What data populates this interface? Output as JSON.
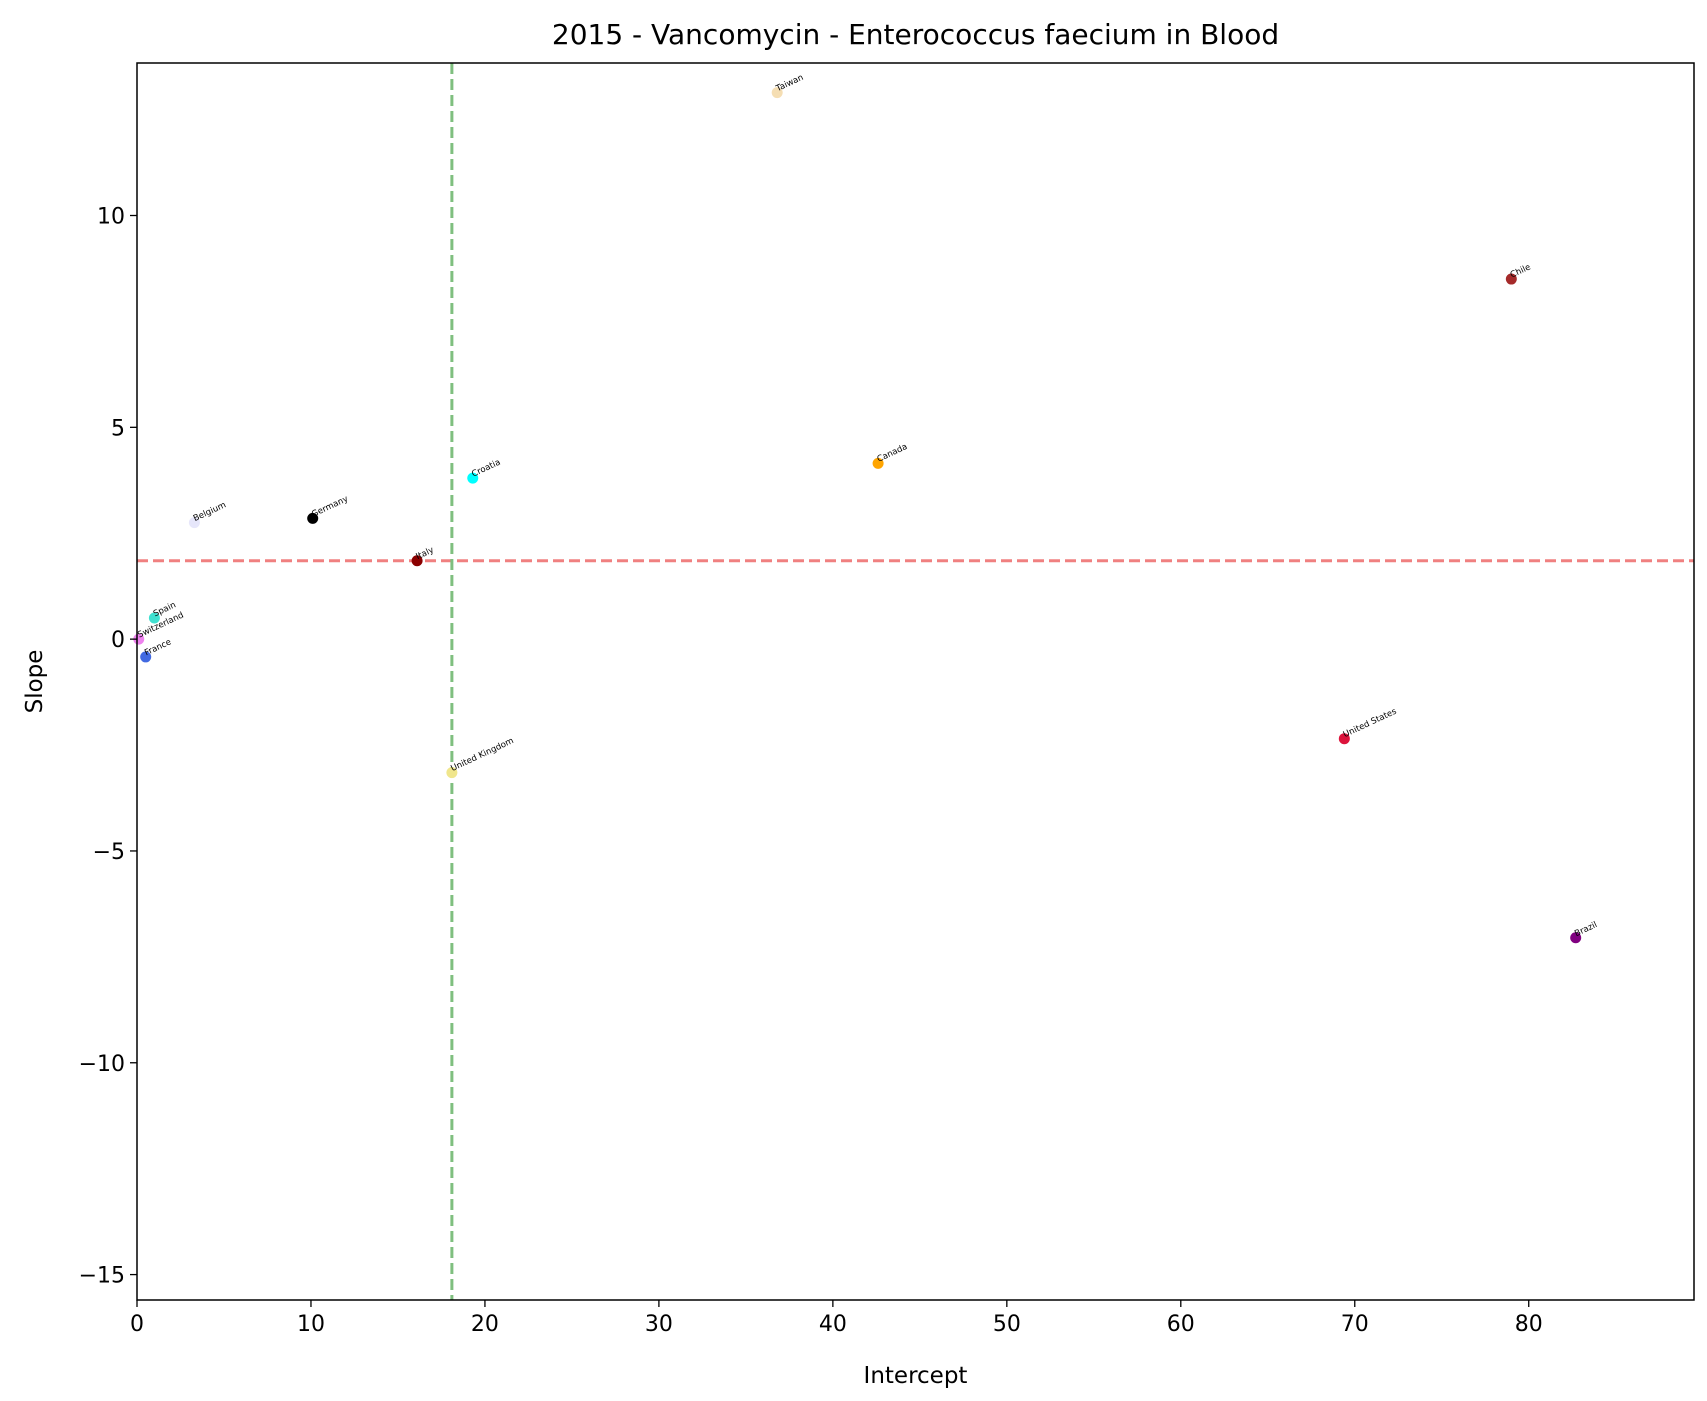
{
  "chart_data": {
    "type": "scatter",
    "title": "2015 - Vancomycin - Enterococcus faecium in Blood",
    "xlabel": "Intercept",
    "ylabel": "Slope",
    "xlim": [
      0,
      89.5
    ],
    "ylim": [
      -15.6,
      13.6
    ],
    "xticks": [
      0,
      10,
      20,
      30,
      40,
      50,
      60,
      70,
      80
    ],
    "yticks": [
      -15,
      -10,
      -5,
      0,
      5,
      10
    ],
    "grid": false,
    "points": [
      {
        "label": "Taiwan",
        "x": 36.8,
        "y": 12.9,
        "color": "#f5deb3"
      },
      {
        "label": "Chile",
        "x": 79.0,
        "y": 8.5,
        "color": "#a52a2a"
      },
      {
        "label": "Canada",
        "x": 42.6,
        "y": 4.15,
        "color": "#ffa500"
      },
      {
        "label": "Croatia",
        "x": 19.3,
        "y": 3.8,
        "color": "#00ffff"
      },
      {
        "label": "Germany",
        "x": 10.1,
        "y": 2.85,
        "color": "#000000"
      },
      {
        "label": "Belgium",
        "x": 3.3,
        "y": 2.75,
        "color": "#e6e6fa"
      },
      {
        "label": "Italy",
        "x": 16.1,
        "y": 1.85,
        "color": "#8b0000"
      },
      {
        "label": "Spain",
        "x": 1.0,
        "y": 0.5,
        "color": "#40e0d0"
      },
      {
        "label": "Switzerland",
        "x": 0.1,
        "y": 0.0,
        "color": "#ee82ee"
      },
      {
        "label": "France",
        "x": 0.5,
        "y": -0.42,
        "color": "#4169e1"
      },
      {
        "label": "United Kingdom",
        "x": 18.1,
        "y": -3.15,
        "color": "#f0e68c"
      },
      {
        "label": "United States",
        "x": 69.4,
        "y": -2.35,
        "color": "#dc143c"
      },
      {
        "label": "Brazil",
        "x": 82.7,
        "y": -7.05,
        "color": "#800080"
      }
    ],
    "reference_lines": [
      {
        "orientation": "horizontal",
        "value": 1.85,
        "color": "#f08080",
        "style": "dashed"
      },
      {
        "orientation": "vertical",
        "value": 18.1,
        "color": "#7fbf7f",
        "style": "dashed"
      }
    ]
  }
}
